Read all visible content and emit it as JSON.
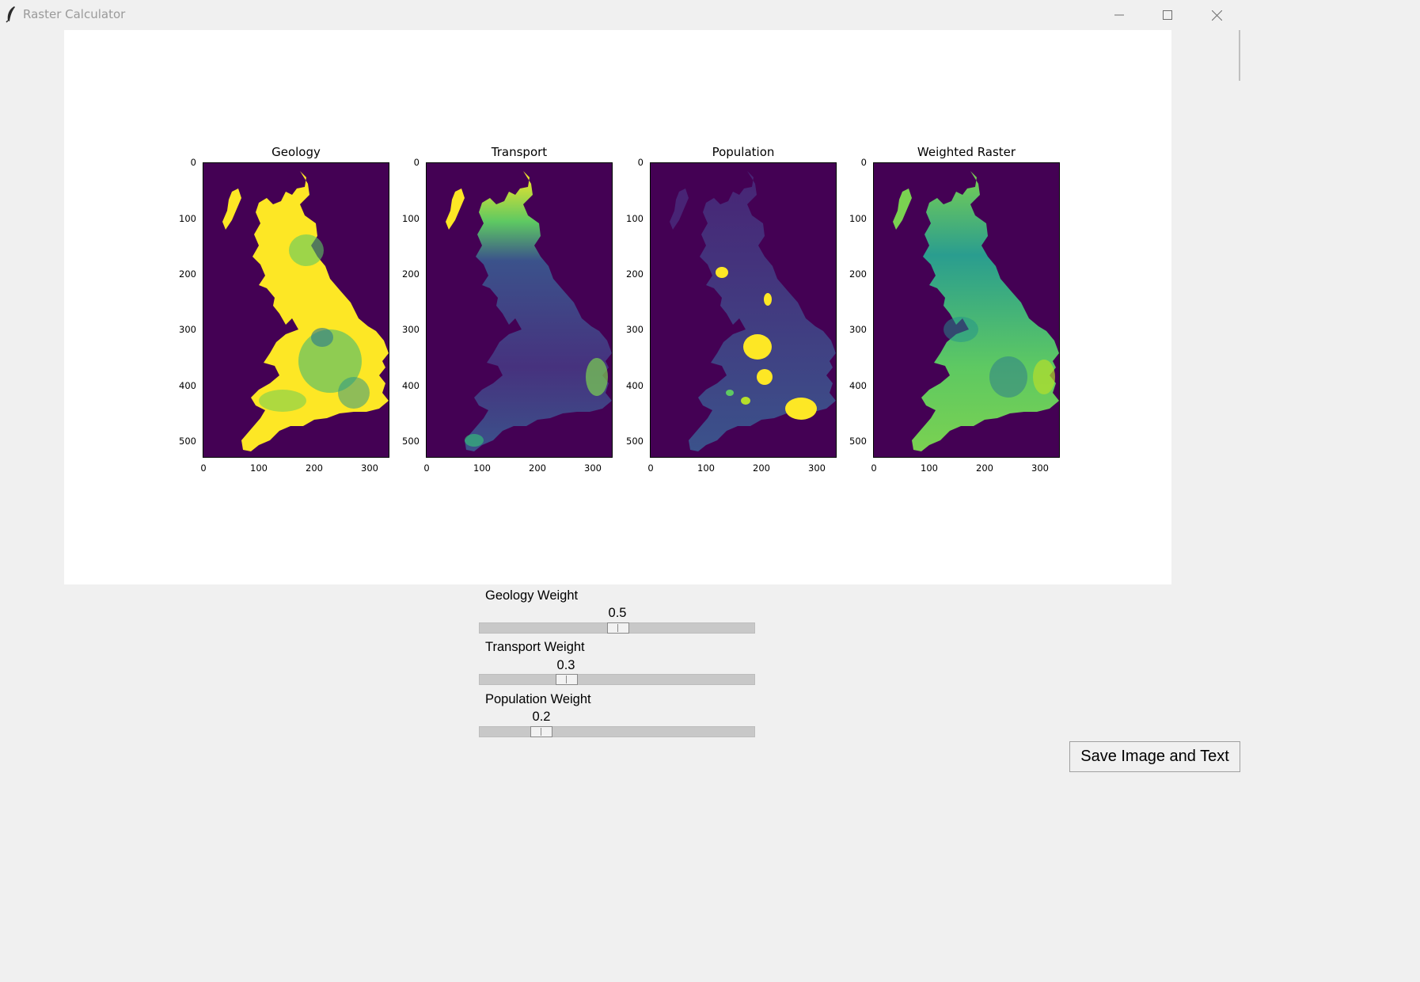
{
  "window": {
    "title": "Raster Calculator",
    "controls": [
      "minimize-icon",
      "maximize-icon",
      "close-icon"
    ]
  },
  "figure": {
    "panels": [
      {
        "title": "Geology"
      },
      {
        "title": "Transport"
      },
      {
        "title": "Population"
      },
      {
        "title": "Weighted Raster"
      }
    ],
    "y_ticks": [
      "0",
      "100",
      "200",
      "300",
      "400",
      "500"
    ],
    "x_ticks": [
      "0",
      "100",
      "200",
      "300"
    ],
    "colormap": {
      "background": "#440154",
      "low": "#3b528b",
      "mid": "#21918c",
      "high": "#fde725"
    }
  },
  "sliders": [
    {
      "label": "Geology Weight",
      "value": "0.5",
      "fraction": 0.5
    },
    {
      "label": "Transport Weight",
      "value": "0.3",
      "fraction": 0.3
    },
    {
      "label": "Population Weight",
      "value": "0.2",
      "fraction": 0.2
    }
  ],
  "save_button": {
    "label": "Save Image and Text"
  }
}
